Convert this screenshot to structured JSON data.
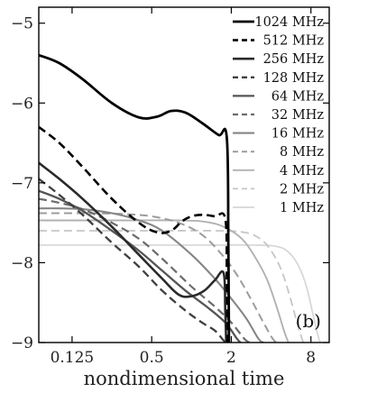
{
  "chart_data": {
    "type": "line",
    "title": "",
    "xlabel": "nondimensional time",
    "ylabel": "",
    "x_scale": "log2",
    "xlim": [
      0.07,
      11
    ],
    "ylim": [
      -9,
      -4.8
    ],
    "x_ticks": [
      0.125,
      0.5,
      2,
      8
    ],
    "x_tick_labels": [
      "0.125",
      "0.5",
      "2",
      "8"
    ],
    "y_ticks": [
      -5,
      -6,
      -7,
      -8,
      -9
    ],
    "y_tick_labels": [
      "−5",
      "−6",
      "−7",
      "−8",
      "−9"
    ],
    "legend_position": "top-right",
    "panel_label": "(b)",
    "series": [
      {
        "name": "1024 MHz",
        "color": "#000000",
        "dash": "solid",
        "width": 2.8,
        "x": [
          0.07,
          0.1,
          0.15,
          0.25,
          0.4,
          0.55,
          0.7,
          0.9,
          1.2,
          1.6,
          1.85,
          1.9,
          1.92
        ],
        "y": [
          -5.4,
          -5.5,
          -5.7,
          -6.0,
          -6.18,
          -6.17,
          -6.1,
          -6.12,
          -6.25,
          -6.4,
          -6.44,
          -7.8,
          -9.0
        ]
      },
      {
        "name": "512 MHz",
        "color": "#000000",
        "dash": "dashed",
        "width": 2.6,
        "x": [
          0.07,
          0.1,
          0.15,
          0.25,
          0.4,
          0.55,
          0.7,
          0.85,
          1.0,
          1.2,
          1.5,
          1.8,
          1.85,
          1.87
        ],
        "y": [
          -6.3,
          -6.5,
          -6.8,
          -7.2,
          -7.5,
          -7.62,
          -7.6,
          -7.48,
          -7.42,
          -7.4,
          -7.42,
          -7.45,
          -8.2,
          -9.0
        ]
      },
      {
        "name": "256 MHz",
        "color": "#2a2a2a",
        "dash": "solid",
        "width": 2.6,
        "x": [
          0.07,
          0.1,
          0.15,
          0.25,
          0.4,
          0.6,
          0.8,
          1.0,
          1.25,
          1.5,
          1.75,
          1.8,
          1.83
        ],
        "y": [
          -6.75,
          -6.95,
          -7.2,
          -7.55,
          -7.9,
          -8.2,
          -8.4,
          -8.42,
          -8.35,
          -8.22,
          -8.13,
          -8.6,
          -9.0
        ]
      },
      {
        "name": "128 MHz",
        "color": "#3f3f3f",
        "dash": "dashed",
        "width": 2.3,
        "x": [
          0.07,
          0.1,
          0.15,
          0.25,
          0.4,
          0.6,
          0.9,
          1.2,
          1.5,
          1.7,
          1.8
        ],
        "y": [
          -6.95,
          -7.15,
          -7.4,
          -7.75,
          -8.05,
          -8.35,
          -8.6,
          -8.75,
          -8.85,
          -8.95,
          -9.0
        ]
      },
      {
        "name": "64 MHz",
        "color": "#555555",
        "dash": "solid",
        "width": 2.3,
        "x": [
          0.07,
          0.1,
          0.15,
          0.25,
          0.4,
          0.6,
          0.9,
          1.3,
          1.8,
          2.2,
          2.35
        ],
        "y": [
          -7.1,
          -7.2,
          -7.35,
          -7.6,
          -7.85,
          -8.1,
          -8.35,
          -8.55,
          -8.75,
          -8.95,
          -9.0
        ]
      },
      {
        "name": "32 MHz",
        "color": "#6b6b6b",
        "dash": "dashed",
        "width": 2.2,
        "x": [
          0.07,
          0.1,
          0.15,
          0.25,
          0.4,
          0.6,
          1.0,
          1.5,
          2.0,
          2.5,
          2.75
        ],
        "y": [
          -7.2,
          -7.25,
          -7.33,
          -7.5,
          -7.7,
          -7.95,
          -8.3,
          -8.55,
          -8.75,
          -8.95,
          -9.0
        ]
      },
      {
        "name": "16 MHz",
        "color": "#858585",
        "dash": "solid",
        "width": 2.1,
        "x": [
          0.07,
          0.1,
          0.15,
          0.25,
          0.4,
          0.6,
          1.0,
          1.5,
          2.0,
          2.6,
          3.2,
          3.5
        ],
        "y": [
          -7.32,
          -7.32,
          -7.33,
          -7.38,
          -7.47,
          -7.6,
          -7.9,
          -8.2,
          -8.45,
          -8.7,
          -8.95,
          -9.0
        ]
      },
      {
        "name": "8 MHz",
        "color": "#9c9c9c",
        "dash": "dashed",
        "width": 2.0,
        "x": [
          0.07,
          0.15,
          0.3,
          0.5,
          0.8,
          1.2,
          1.7,
          2.2,
          2.8,
          3.5,
          4.1,
          4.4
        ],
        "y": [
          -7.38,
          -7.38,
          -7.39,
          -7.42,
          -7.5,
          -7.65,
          -7.9,
          -8.15,
          -8.45,
          -8.75,
          -8.95,
          -9.0
        ]
      },
      {
        "name": "4 MHz",
        "color": "#b2b2b2",
        "dash": "solid",
        "width": 1.9,
        "x": [
          0.07,
          0.3,
          0.8,
          1.3,
          1.8,
          2.4,
          3.0,
          3.7,
          4.4,
          5.0,
          5.4
        ],
        "y": [
          -7.47,
          -7.47,
          -7.47,
          -7.49,
          -7.56,
          -7.7,
          -7.92,
          -8.2,
          -8.55,
          -8.85,
          -9.0
        ]
      },
      {
        "name": "2 MHz",
        "color": "#c6c6c6",
        "dash": "dashed",
        "width": 1.8,
        "x": [
          0.07,
          0.5,
          1.5,
          2.5,
          3.3,
          4.0,
          4.8,
          5.6,
          6.4,
          7.0
        ],
        "y": [
          -7.6,
          -7.6,
          -7.6,
          -7.62,
          -7.7,
          -7.85,
          -8.1,
          -8.45,
          -8.8,
          -9.0
        ]
      },
      {
        "name": "1 MHz",
        "color": "#d6d6d6",
        "dash": "solid",
        "width": 1.7,
        "x": [
          0.07,
          1.0,
          3.0,
          4.5,
          5.5,
          6.5,
          7.4,
          8.3,
          9.0,
          9.4
        ],
        "y": [
          -7.78,
          -7.78,
          -7.78,
          -7.8,
          -7.88,
          -8.05,
          -8.3,
          -8.65,
          -8.9,
          -9.0
        ]
      }
    ]
  }
}
